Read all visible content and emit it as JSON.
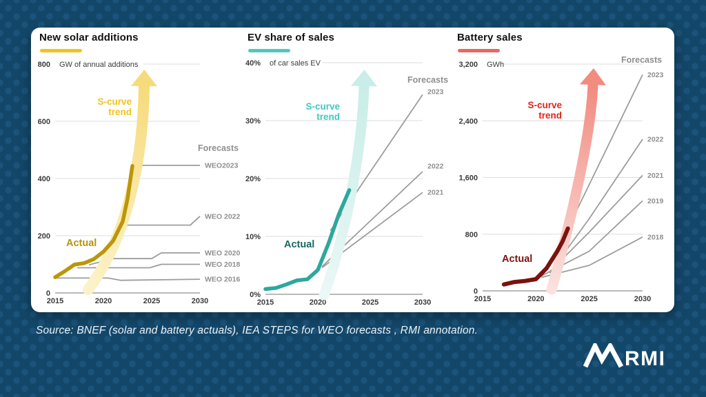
{
  "page": {
    "source_note": "Source: BNEF (solar and battery actuals), IEA STEPS for WEO forecasts , RMI annotation.",
    "logo_text": "RMI"
  },
  "chart_data": [
    {
      "type": "line",
      "title": "New solar additions",
      "unit_label": "GW of annual additions",
      "xlim": [
        2015,
        2030
      ],
      "ylim": [
        0,
        800
      ],
      "grid": true,
      "x_ticks": [
        {
          "label": "2015",
          "value": 2015
        },
        {
          "label": "2020",
          "value": 2020
        },
        {
          "label": "2025",
          "value": 2025
        },
        {
          "label": "2030",
          "value": 2030
        }
      ],
      "y_ticks": [
        {
          "label": "800",
          "value": 800
        },
        {
          "label": "600",
          "value": 600
        },
        {
          "label": "400",
          "value": 400
        },
        {
          "label": "200",
          "value": 200
        },
        {
          "label": "0",
          "value": 0
        }
      ],
      "annotations": {
        "s_curve": "S-curve\ntrend",
        "actual": "Actual",
        "forecasts": "Forecasts"
      },
      "colors": {
        "accent": "#F4C318",
        "actual": "#BC9609",
        "actual_label": "#B7930B",
        "s_curve_text": "#F0C31B",
        "arrow_from": "#FCF2CA",
        "arrow_to": "#F6DB7C",
        "forecast_line": "#9c9c9c"
      },
      "series": {
        "actual": {
          "name": "Actual",
          "width": 5.5,
          "points": [
            [
              2015,
              55
            ],
            [
              2016,
              76
            ],
            [
              2017,
              99
            ],
            [
              2018,
              104
            ],
            [
              2019,
              118
            ],
            [
              2020,
              144
            ],
            [
              2021,
              182
            ],
            [
              2022,
              250
            ],
            [
              2022.5,
              330
            ],
            [
              2023,
              444
            ]
          ]
        },
        "forecasts": [
          {
            "label": "WEO2023",
            "points": [
              [
                2023,
                446
              ],
              [
                2030,
                446
              ]
            ]
          },
          {
            "label": "WEO 2022",
            "points": [
              [
                2022.2,
                237
              ],
              [
                2029,
                237
              ],
              [
                2030,
                268
              ]
            ]
          },
          {
            "label": "WEO 2020",
            "points": [
              [
                2018.5,
                98
              ],
              [
                2021,
                120
              ],
              [
                2025,
                120
              ],
              [
                2026,
                140
              ],
              [
                2030,
                140
              ]
            ]
          },
          {
            "label": "WEO 2018",
            "points": [
              [
                2017.3,
                88
              ],
              [
                2024.8,
                88
              ],
              [
                2026,
                100
              ],
              [
                2030,
                100
              ]
            ]
          },
          {
            "label": "WEO 2016",
            "points": [
              [
                2015,
                52
              ],
              [
                2020.5,
                52
              ],
              [
                2021.8,
                44
              ],
              [
                2030,
                48
              ]
            ]
          }
        ]
      }
    },
    {
      "type": "line",
      "title": "EV share of sales",
      "unit_label": "of car sales EV",
      "xlim": [
        2015,
        2030
      ],
      "ylim": [
        0,
        40
      ],
      "grid": true,
      "x_ticks": [
        {
          "label": "2015",
          "value": 2015
        },
        {
          "label": "2020",
          "value": 2020
        },
        {
          "label": "2025",
          "value": 2025
        },
        {
          "label": "2030",
          "value": 2030
        }
      ],
      "y_ticks": [
        {
          "label": "40%",
          "value": 40
        },
        {
          "label": "30%",
          "value": 30
        },
        {
          "label": "20%",
          "value": 20
        },
        {
          "label": "10%",
          "value": 10
        },
        {
          "label": "0%",
          "value": 0
        }
      ],
      "annotations": {
        "s_curve": "S-curve\ntrend",
        "actual": "Actual",
        "forecasts": "Forecasts"
      },
      "colors": {
        "accent": "#4EC9BF",
        "actual": "#2CA89E",
        "actual_label": "#15695F",
        "s_curve_text": "#41C8BD",
        "arrow_from": "#EAF8F6",
        "arrow_to": "#C9EDE8",
        "forecast_line": "#9c9c9c"
      },
      "series": {
        "actual": {
          "name": "Actual",
          "width": 5.5,
          "points": [
            [
              2015,
              0.9
            ],
            [
              2016,
              1.1
            ],
            [
              2017,
              1.7
            ],
            [
              2018,
              2.4
            ],
            [
              2019,
              2.6
            ],
            [
              2020,
              4.2
            ],
            [
              2021,
              8.7
            ],
            [
              2022,
              13.8
            ],
            [
              2023,
              18
            ]
          ]
        },
        "forecasts": [
          {
            "label": "2023",
            "points": [
              [
                2021.2,
                11
              ],
              [
                2030,
                34.5
              ]
            ],
            "label_dy": -4
          },
          {
            "label": "2022",
            "points": [
              [
                2020.4,
                4.8
              ],
              [
                2030,
                21.2
              ]
            ],
            "label_dy": -8
          },
          {
            "label": "2021",
            "points": [
              [
                2020.4,
                4.6
              ],
              [
                2030,
                17.6
              ]
            ]
          }
        ]
      }
    },
    {
      "type": "line",
      "title": "Battery sales",
      "unit_label": "GWh",
      "xlim": [
        2015,
        2030
      ],
      "ylim": [
        0,
        3200
      ],
      "grid": true,
      "x_ticks": [
        {
          "label": "2015",
          "value": 2015
        },
        {
          "label": "2020",
          "value": 2020
        },
        {
          "label": "2025",
          "value": 2025
        },
        {
          "label": "2030",
          "value": 2030
        }
      ],
      "y_ticks": [
        {
          "label": "3,200",
          "value": 3200
        },
        {
          "label": "2,400",
          "value": 2400
        },
        {
          "label": "1,600",
          "value": 1600
        },
        {
          "label": "800",
          "value": 800
        },
        {
          "label": "0",
          "value": 0
        }
      ],
      "annotations": {
        "s_curve": "S-curve\ntrend",
        "actual": "Actual",
        "forecasts": "Forecasts"
      },
      "colors": {
        "accent": "#EA685B",
        "actual": "#7C120C",
        "actual_label": "#7A120C",
        "s_curve_text": "#E02318",
        "arrow_from": "#FBE2DF",
        "arrow_to": "#F28B80",
        "forecast_line": "#9c9c9c"
      },
      "series": {
        "actual": {
          "name": "Actual",
          "width": 6,
          "points": [
            [
              2017,
              90
            ],
            [
              2018,
              125
            ],
            [
              2019,
              140
            ],
            [
              2020,
              165
            ],
            [
              2021,
              320
            ],
            [
              2022,
              560
            ],
            [
              2022.5,
              700
            ],
            [
              2023,
              880
            ]
          ]
        },
        "forecasts": [
          {
            "label": "2023",
            "points": [
              [
                2023,
                880
              ],
              [
                2030,
                3050
              ]
            ]
          },
          {
            "label": "2022",
            "points": [
              [
                2021.3,
                250
              ],
              [
                2025,
                1020
              ],
              [
                2030,
                2140
              ]
            ]
          },
          {
            "label": "2021",
            "points": [
              [
                2021.3,
                270
              ],
              [
                2025,
                830
              ],
              [
                2030,
                1630
              ]
            ]
          },
          {
            "label": "2019",
            "points": [
              [
                2020.5,
                210
              ],
              [
                2025,
                560
              ],
              [
                2030,
                1270
              ]
            ]
          },
          {
            "label": "2018",
            "points": [
              [
                2020.5,
                190
              ],
              [
                2025,
                360
              ],
              [
                2030,
                760
              ]
            ]
          }
        ]
      }
    }
  ]
}
